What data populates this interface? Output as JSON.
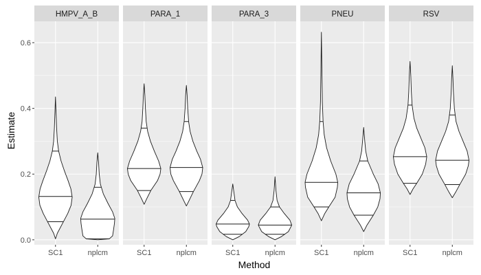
{
  "chart_data": {
    "type": "violin",
    "xlabel": "Method",
    "ylabel": "Estimate",
    "ylim": [
      -0.015,
      0.665
    ],
    "yticks": [
      0.0,
      0.2,
      0.4,
      0.6
    ],
    "ytick_labels": [
      "0.0",
      "0.2",
      "0.4",
      "0.6"
    ],
    "categories": [
      "SC1",
      "nplcm"
    ],
    "grid": true,
    "legend": "none",
    "colors": {
      "panel_bg": "#ebebeb",
      "strip_bg": "#d9d9d9",
      "grid": "#ffffff",
      "violin_fill": "#ffffff",
      "violin_line": "#1a1a1a"
    },
    "panels": [
      {
        "name": "HMPV_A_B",
        "violins": [
          {
            "method": "SC1",
            "min": 0.003,
            "max": 0.435,
            "quantiles": [
              0.055,
              0.132,
              0.27
            ],
            "profile": [
              [
                0.003,
                0.0
              ],
              [
                0.02,
                0.1
              ],
              [
                0.05,
                0.38
              ],
              [
                0.08,
                0.66
              ],
              [
                0.105,
                0.84
              ],
              [
                0.13,
                0.9
              ],
              [
                0.155,
                0.83
              ],
              [
                0.18,
                0.68
              ],
              [
                0.21,
                0.48
              ],
              [
                0.24,
                0.3
              ],
              [
                0.27,
                0.17
              ],
              [
                0.3,
                0.1
              ],
              [
                0.34,
                0.06
              ],
              [
                0.38,
                0.035
              ],
              [
                0.435,
                0.0
              ]
            ]
          },
          {
            "method": "nplcm",
            "min": 0.0,
            "max": 0.265,
            "quantiles": [
              0.003,
              0.063,
              0.16
            ],
            "profile": [
              [
                0.0,
                0.0
              ],
              [
                0.003,
                0.62
              ],
              [
                0.012,
                0.8
              ],
              [
                0.03,
                0.85
              ],
              [
                0.05,
                0.9
              ],
              [
                0.065,
                0.92
              ],
              [
                0.085,
                0.8
              ],
              [
                0.11,
                0.56
              ],
              [
                0.14,
                0.3
              ],
              [
                0.17,
                0.14
              ],
              [
                0.2,
                0.08
              ],
              [
                0.235,
                0.045
              ],
              [
                0.265,
                0.0
              ]
            ]
          }
        ]
      },
      {
        "name": "PARA_1",
        "violins": [
          {
            "method": "SC1",
            "min": 0.108,
            "max": 0.475,
            "quantiles": [
              0.15,
              0.217,
              0.34
            ],
            "profile": [
              [
                0.108,
                0.0
              ],
              [
                0.125,
                0.14
              ],
              [
                0.15,
                0.36
              ],
              [
                0.18,
                0.72
              ],
              [
                0.2,
                0.86
              ],
              [
                0.217,
                0.9
              ],
              [
                0.24,
                0.78
              ],
              [
                0.27,
                0.55
              ],
              [
                0.3,
                0.34
              ],
              [
                0.33,
                0.19
              ],
              [
                0.36,
                0.11
              ],
              [
                0.4,
                0.07
              ],
              [
                0.44,
                0.04
              ],
              [
                0.475,
                0.0
              ]
            ]
          },
          {
            "method": "nplcm",
            "min": 0.103,
            "max": 0.47,
            "quantiles": [
              0.147,
              0.22,
              0.36
            ],
            "profile": [
              [
                0.103,
                0.0
              ],
              [
                0.12,
                0.15
              ],
              [
                0.147,
                0.38
              ],
              [
                0.18,
                0.7
              ],
              [
                0.2,
                0.84
              ],
              [
                0.22,
                0.88
              ],
              [
                0.245,
                0.76
              ],
              [
                0.27,
                0.56
              ],
              [
                0.3,
                0.35
              ],
              [
                0.33,
                0.2
              ],
              [
                0.36,
                0.12
              ],
              [
                0.4,
                0.07
              ],
              [
                0.44,
                0.04
              ],
              [
                0.47,
                0.0
              ]
            ]
          }
        ]
      },
      {
        "name": "PARA_3",
        "violins": [
          {
            "method": "SC1",
            "min": 0.0,
            "max": 0.17,
            "quantiles": [
              0.017,
              0.048,
              0.12
            ],
            "profile": [
              [
                0.0,
                0.0
              ],
              [
                0.01,
                0.35
              ],
              [
                0.025,
                0.7
              ],
              [
                0.04,
                0.86
              ],
              [
                0.048,
                0.9
              ],
              [
                0.06,
                0.8
              ],
              [
                0.08,
                0.5
              ],
              [
                0.1,
                0.25
              ],
              [
                0.12,
                0.12
              ],
              [
                0.145,
                0.06
              ],
              [
                0.17,
                0.0
              ]
            ]
          },
          {
            "method": "nplcm",
            "min": 0.0,
            "max": 0.192,
            "quantiles": [
              0.017,
              0.045,
              0.1
            ],
            "profile": [
              [
                0.0,
                0.0
              ],
              [
                0.01,
                0.35
              ],
              [
                0.025,
                0.72
              ],
              [
                0.04,
                0.86
              ],
              [
                0.045,
                0.9
              ],
              [
                0.06,
                0.8
              ],
              [
                0.08,
                0.5
              ],
              [
                0.1,
                0.24
              ],
              [
                0.12,
                0.11
              ],
              [
                0.15,
                0.05
              ],
              [
                0.192,
                0.0
              ]
            ]
          }
        ]
      },
      {
        "name": "PNEU",
        "violins": [
          {
            "method": "SC1",
            "min": 0.058,
            "max": 0.632,
            "quantiles": [
              0.1,
              0.175,
              0.36
            ],
            "profile": [
              [
                0.058,
                0.0
              ],
              [
                0.08,
                0.18
              ],
              [
                0.1,
                0.4
              ],
              [
                0.13,
                0.74
              ],
              [
                0.16,
                0.86
              ],
              [
                0.175,
                0.88
              ],
              [
                0.2,
                0.78
              ],
              [
                0.24,
                0.5
              ],
              [
                0.28,
                0.28
              ],
              [
                0.32,
                0.15
              ],
              [
                0.36,
                0.09
              ],
              [
                0.42,
                0.05
              ],
              [
                0.5,
                0.03
              ],
              [
                0.632,
                0.0
              ]
            ]
          },
          {
            "method": "nplcm",
            "min": 0.025,
            "max": 0.342,
            "quantiles": [
              0.075,
              0.143,
              0.24
            ],
            "profile": [
              [
                0.025,
                0.0
              ],
              [
                0.045,
                0.18
              ],
              [
                0.075,
                0.52
              ],
              [
                0.1,
                0.76
              ],
              [
                0.125,
                0.88
              ],
              [
                0.143,
                0.9
              ],
              [
                0.17,
                0.78
              ],
              [
                0.2,
                0.52
              ],
              [
                0.24,
                0.22
              ],
              [
                0.27,
                0.11
              ],
              [
                0.3,
                0.06
              ],
              [
                0.342,
                0.0
              ]
            ]
          }
        ]
      },
      {
        "name": "RSV",
        "violins": [
          {
            "method": "SC1",
            "min": 0.138,
            "max": 0.543,
            "quantiles": [
              0.172,
              0.253,
              0.41
            ],
            "profile": [
              [
                0.138,
                0.0
              ],
              [
                0.155,
                0.16
              ],
              [
                0.172,
                0.36
              ],
              [
                0.2,
                0.66
              ],
              [
                0.23,
                0.84
              ],
              [
                0.253,
                0.9
              ],
              [
                0.28,
                0.8
              ],
              [
                0.31,
                0.58
              ],
              [
                0.34,
                0.36
              ],
              [
                0.37,
                0.21
              ],
              [
                0.41,
                0.11
              ],
              [
                0.45,
                0.07
              ],
              [
                0.5,
                0.04
              ],
              [
                0.543,
                0.0
              ]
            ]
          },
          {
            "method": "nplcm",
            "min": 0.128,
            "max": 0.53,
            "quantiles": [
              0.168,
              0.242,
              0.38
            ],
            "profile": [
              [
                0.128,
                0.0
              ],
              [
                0.145,
                0.18
              ],
              [
                0.168,
                0.4
              ],
              [
                0.2,
                0.72
              ],
              [
                0.225,
                0.86
              ],
              [
                0.242,
                0.9
              ],
              [
                0.27,
                0.8
              ],
              [
                0.3,
                0.58
              ],
              [
                0.33,
                0.36
              ],
              [
                0.36,
                0.2
              ],
              [
                0.4,
                0.11
              ],
              [
                0.45,
                0.06
              ],
              [
                0.49,
                0.035
              ],
              [
                0.53,
                0.0
              ]
            ]
          }
        ]
      }
    ]
  }
}
